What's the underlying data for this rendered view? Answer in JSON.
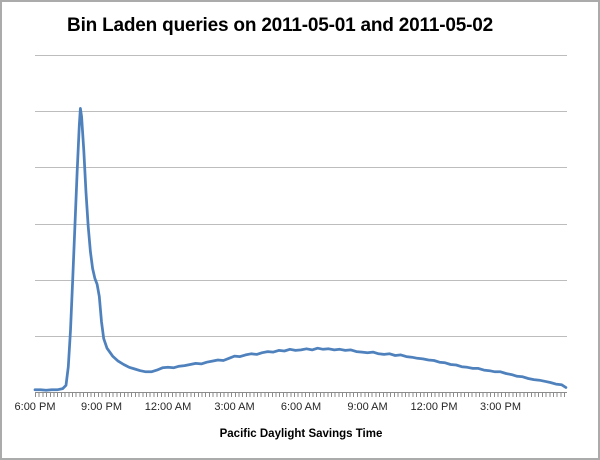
{
  "title": "Bin Laden queries on 2011-05-01 and 2011-05-02",
  "colors": {
    "line": "#4f81bd",
    "gridline": "#bdbdbd",
    "axis": "#8c8c8c",
    "title_text": "#000000",
    "tick_text": "#262626",
    "background": "#ffffff",
    "frame_border": "#ababab"
  },
  "chart_data": {
    "type": "line",
    "title": "Bin Laden queries on 2011-05-01 and 2011-05-02",
    "xlabel": "Pacific Daylight Savings Time",
    "ylabel": "",
    "legend": "none",
    "grid": "horizontal-only",
    "y_tick_labels_shown": false,
    "y_gridlines": 6,
    "xlim": [
      0,
      24
    ],
    "ylim": [
      0,
      6
    ],
    "x_unit": "hours after 6:00 PM PDT",
    "x_tick_hours": [
      0,
      3,
      6,
      9,
      12,
      15,
      18,
      21
    ],
    "x_tick_labels": [
      "6:00 PM",
      "9:00 PM",
      "12:00 AM",
      "3:00 AM",
      "6:00 AM",
      "9:00 AM",
      "12:00 PM",
      "3:00 PM"
    ],
    "line_color": "#4f81bd",
    "series": [
      {
        "name": "Bin Laden queries",
        "points": [
          [
            0,
            0.04
          ],
          [
            0.25,
            0.04
          ],
          [
            0.5,
            0.03
          ],
          [
            0.75,
            0.04
          ],
          [
            1,
            0.04
          ],
          [
            1.25,
            0.06
          ],
          [
            1.4,
            0.12
          ],
          [
            1.5,
            0.45
          ],
          [
            1.6,
            1.1
          ],
          [
            1.7,
            2.0
          ],
          [
            1.8,
            2.95
          ],
          [
            1.9,
            3.9
          ],
          [
            2.0,
            4.75
          ],
          [
            2.05,
            5.05
          ],
          [
            2.1,
            4.9
          ],
          [
            2.2,
            4.3
          ],
          [
            2.3,
            3.55
          ],
          [
            2.4,
            2.95
          ],
          [
            2.5,
            2.5
          ],
          [
            2.6,
            2.2
          ],
          [
            2.7,
            2.02
          ],
          [
            2.8,
            1.92
          ],
          [
            2.9,
            1.7
          ],
          [
            3.0,
            1.25
          ],
          [
            3.1,
            0.95
          ],
          [
            3.25,
            0.78
          ],
          [
            3.5,
            0.64
          ],
          [
            3.75,
            0.55
          ],
          [
            4.0,
            0.49
          ],
          [
            4.25,
            0.44
          ],
          [
            4.5,
            0.41
          ],
          [
            4.75,
            0.38
          ],
          [
            5.0,
            0.36
          ],
          [
            5.25,
            0.36
          ],
          [
            5.5,
            0.39
          ],
          [
            5.75,
            0.43
          ],
          [
            6.0,
            0.44
          ],
          [
            6.25,
            0.43
          ],
          [
            6.5,
            0.46
          ],
          [
            6.75,
            0.47
          ],
          [
            7.0,
            0.49
          ],
          [
            7.25,
            0.51
          ],
          [
            7.5,
            0.5
          ],
          [
            7.75,
            0.53
          ],
          [
            8.0,
            0.55
          ],
          [
            8.25,
            0.57
          ],
          [
            8.5,
            0.56
          ],
          [
            8.75,
            0.6
          ],
          [
            9.0,
            0.64
          ],
          [
            9.25,
            0.63
          ],
          [
            9.5,
            0.66
          ],
          [
            9.75,
            0.68
          ],
          [
            10.0,
            0.67
          ],
          [
            10.25,
            0.7
          ],
          [
            10.5,
            0.72
          ],
          [
            10.75,
            0.71
          ],
          [
            11.0,
            0.74
          ],
          [
            11.25,
            0.73
          ],
          [
            11.5,
            0.76
          ],
          [
            11.75,
            0.74
          ],
          [
            12.0,
            0.75
          ],
          [
            12.25,
            0.77
          ],
          [
            12.5,
            0.75
          ],
          [
            12.75,
            0.78
          ],
          [
            13.0,
            0.76
          ],
          [
            13.25,
            0.77
          ],
          [
            13.5,
            0.75
          ],
          [
            13.75,
            0.76
          ],
          [
            14.0,
            0.74
          ],
          [
            14.25,
            0.75
          ],
          [
            14.5,
            0.72
          ],
          [
            14.75,
            0.71
          ],
          [
            15.0,
            0.7
          ],
          [
            15.25,
            0.71
          ],
          [
            15.5,
            0.68
          ],
          [
            15.75,
            0.67
          ],
          [
            16.0,
            0.68
          ],
          [
            16.25,
            0.65
          ],
          [
            16.5,
            0.66
          ],
          [
            16.75,
            0.63
          ],
          [
            17.0,
            0.62
          ],
          [
            17.25,
            0.6
          ],
          [
            17.5,
            0.59
          ],
          [
            17.75,
            0.57
          ],
          [
            18.0,
            0.56
          ],
          [
            18.25,
            0.53
          ],
          [
            18.5,
            0.52
          ],
          [
            18.75,
            0.49
          ],
          [
            19.0,
            0.48
          ],
          [
            19.25,
            0.45
          ],
          [
            19.5,
            0.44
          ],
          [
            19.75,
            0.42
          ],
          [
            20.0,
            0.42
          ],
          [
            20.25,
            0.39
          ],
          [
            20.5,
            0.38
          ],
          [
            20.75,
            0.36
          ],
          [
            21.0,
            0.36
          ],
          [
            21.25,
            0.33
          ],
          [
            21.5,
            0.31
          ],
          [
            21.75,
            0.28
          ],
          [
            22.0,
            0.27
          ],
          [
            22.25,
            0.24
          ],
          [
            22.5,
            0.22
          ],
          [
            22.75,
            0.21
          ],
          [
            23.0,
            0.19
          ],
          [
            23.25,
            0.17
          ],
          [
            23.5,
            0.14
          ],
          [
            23.75,
            0.13
          ],
          [
            23.95,
            0.08
          ]
        ]
      }
    ]
  }
}
